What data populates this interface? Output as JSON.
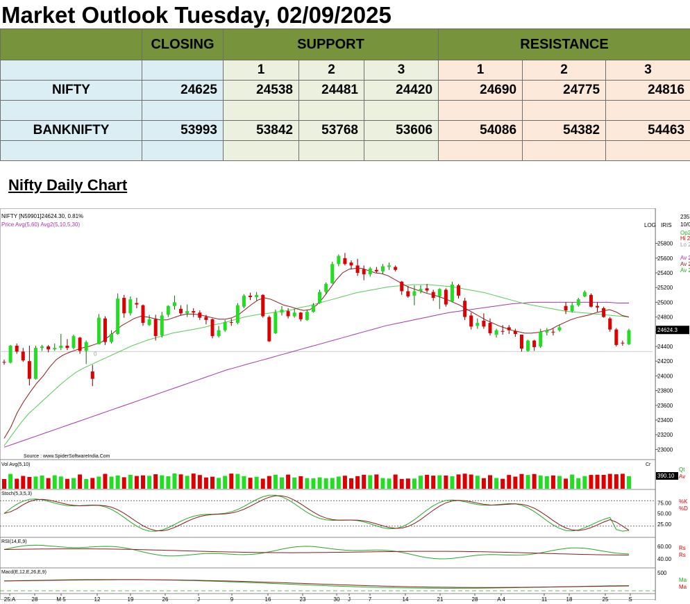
{
  "title": "Market Outlook Tuesday, 02/09/2025",
  "table": {
    "headers": {
      "closing": "CLOSING",
      "support": "SUPPORT",
      "resistance": "RESISTANCE"
    },
    "level_numbers": [
      "1",
      "2",
      "3"
    ],
    "rows": [
      {
        "name": "NIFTY",
        "closing": "24625",
        "support": [
          "24538",
          "24481",
          "24420"
        ],
        "resistance": [
          "24690",
          "24775",
          "24816"
        ]
      },
      {
        "name": "BANKNIFTY",
        "closing": "53993",
        "support": [
          "53842",
          "53768",
          "53606"
        ],
        "resistance": [
          "54086",
          "54382",
          "54463"
        ]
      }
    ]
  },
  "subtitle": "Nifty Daily Chart",
  "chart_data": {
    "type": "candlestick",
    "header_line1": "NIFTY [N59901]24624.30, 0.81%",
    "header_line2": "Price Avg(5,60) Avg2(5,10,5,30)",
    "source": "Source : www.SpiderSoftwareIndia.Com",
    "scale_labels": [
      "LOG",
      "IRIS"
    ],
    "right_labels": [
      "235",
      "10/0",
      "Op2",
      "Hi 2",
      "Lo 2",
      "Av 2",
      "Av 2",
      "Av 2"
    ],
    "last_price_label": "24624.3",
    "y_ticks": [
      23000,
      23200,
      23400,
      23600,
      23800,
      24000,
      24200,
      24400,
      24600,
      24800,
      25000,
      25200,
      25400,
      25600,
      25800
    ],
    "ylim": [
      22900,
      25900
    ],
    "support_line": 24330,
    "zero_marker": "0",
    "candles": [
      [
        24190,
        24220,
        24150,
        24180
      ],
      [
        24180,
        24420,
        24170,
        24410
      ],
      [
        24410,
        24440,
        24300,
        24330
      ],
      [
        24330,
        24380,
        24190,
        24210
      ],
      [
        24200,
        24410,
        23870,
        23960
      ],
      [
        23960,
        24410,
        23950,
        24380
      ],
      [
        24380,
        24420,
        24340,
        24400
      ],
      [
        24400,
        24420,
        24320,
        24360
      ],
      [
        24360,
        24440,
        24340,
        24380
      ],
      [
        24380,
        24570,
        24350,
        24410
      ],
      [
        24410,
        24500,
        24350,
        24380
      ],
      [
        24380,
        24560,
        24360,
        24540
      ],
      [
        24520,
        24530,
        24300,
        24340
      ],
      [
        24340,
        24480,
        24160,
        24460
      ],
      [
        24060,
        24150,
        23860,
        23960
      ],
      [
        24430,
        24840,
        24430,
        24790
      ],
      [
        24780,
        24810,
        24420,
        24460
      ],
      [
        24460,
        24620,
        24440,
        24570
      ],
      [
        24570,
        25120,
        24560,
        25050
      ],
      [
        25060,
        25100,
        24790,
        24850
      ],
      [
        24850,
        25080,
        24820,
        25040
      ],
      [
        24990,
        25060,
        24920,
        24970
      ],
      [
        24960,
        24970,
        24680,
        24720
      ],
      [
        24690,
        24830,
        24680,
        24770
      ],
      [
        24770,
        24830,
        24480,
        24540
      ],
      [
        24550,
        24870,
        24520,
        24820
      ],
      [
        24830,
        24960,
        24800,
        24950
      ],
      [
        24950,
        25090,
        24900,
        25000
      ],
      [
        24910,
        24960,
        24820,
        24850
      ],
      [
        24850,
        24970,
        24800,
        24880
      ],
      [
        24880,
        24920,
        24800,
        24860
      ],
      [
        24860,
        24890,
        24760,
        24790
      ],
      [
        24800,
        24830,
        24700,
        24760
      ],
      [
        24770,
        24780,
        24510,
        24540
      ],
      [
        24540,
        24680,
        24520,
        24620
      ],
      [
        24620,
        24760,
        24600,
        24730
      ],
      [
        24730,
        24780,
        24680,
        24720
      ],
      [
        24720,
        24990,
        24700,
        24960
      ],
      [
        24940,
        25110,
        24920,
        25090
      ],
      [
        25090,
        25130,
        25030,
        25070
      ],
      [
        25070,
        25140,
        25020,
        25100
      ],
      [
        25100,
        25110,
        24790,
        24810
      ],
      [
        24800,
        24820,
        24460,
        24470
      ],
      [
        24580,
        24900,
        24570,
        24860
      ],
      [
        24860,
        24950,
        24820,
        24900
      ],
      [
        24880,
        24920,
        24780,
        24810
      ],
      [
        24810,
        24910,
        24790,
        24860
      ],
      [
        24860,
        24870,
        24740,
        24770
      ],
      [
        24760,
        24890,
        24750,
        24870
      ],
      [
        24870,
        24990,
        24860,
        24960
      ],
      [
        24990,
        25170,
        24980,
        25140
      ],
      [
        25140,
        25270,
        25110,
        25250
      ],
      [
        25260,
        25550,
        25250,
        25520
      ],
      [
        25520,
        25650,
        25490,
        25630
      ],
      [
        25600,
        25670,
        25500,
        25520
      ],
      [
        25540,
        25570,
        25450,
        25500
      ],
      [
        25500,
        25590,
        25360,
        25400
      ],
      [
        25450,
        25500,
        25300,
        25380
      ],
      [
        25380,
        25480,
        25350,
        25460
      ],
      [
        25440,
        25480,
        25400,
        25420
      ],
      [
        25420,
        25520,
        25380,
        25490
      ],
      [
        25480,
        25540,
        25440,
        25500
      ],
      [
        25480,
        25500,
        25420,
        25440
      ],
      [
        25280,
        25290,
        25100,
        25150
      ],
      [
        25150,
        25220,
        25060,
        25080
      ],
      [
        25090,
        25230,
        24960,
        25150
      ],
      [
        25150,
        25230,
        25120,
        25180
      ],
      [
        25190,
        25250,
        25130,
        25160
      ],
      [
        25140,
        25170,
        25020,
        25060
      ],
      [
        25080,
        25190,
        24910,
        25180
      ],
      [
        25170,
        25190,
        24940,
        24970
      ],
      [
        25010,
        25280,
        25000,
        25240
      ],
      [
        25230,
        25250,
        25050,
        25090
      ],
      [
        25020,
        25060,
        24760,
        24800
      ],
      [
        24820,
        24860,
        24630,
        24670
      ],
      [
        24680,
        24780,
        24640,
        24720
      ],
      [
        24750,
        24850,
        24640,
        24670
      ],
      [
        24720,
        24780,
        24550,
        24580
      ],
      [
        24560,
        24640,
        24520,
        24620
      ],
      [
        24610,
        24690,
        24560,
        24600
      ],
      [
        24660,
        24690,
        24570,
        24620
      ],
      [
        24610,
        24640,
        24530,
        24570
      ],
      [
        24560,
        24560,
        24330,
        24370
      ],
      [
        24340,
        24490,
        24330,
        24480
      ],
      [
        24480,
        24490,
        24340,
        24390
      ],
      [
        24400,
        24640,
        24380,
        24600
      ],
      [
        24590,
        24650,
        24550,
        24620
      ],
      [
        24600,
        24640,
        24550,
        24590
      ],
      [
        24620,
        24700,
        24600,
        24660
      ],
      [
        24950,
        25000,
        24840,
        24890
      ],
      [
        24880,
        25000,
        24860,
        24960
      ],
      [
        24960,
        25060,
        24940,
        25040
      ],
      [
        25080,
        25160,
        25070,
        25140
      ],
      [
        25100,
        25120,
        24930,
        24940
      ],
      [
        24950,
        25000,
        24870,
        24930
      ],
      [
        24920,
        24940,
        24790,
        24800
      ],
      [
        24780,
        24800,
        24600,
        24630
      ],
      [
        24630,
        24650,
        24400,
        24420
      ],
      [
        24450,
        24480,
        24410,
        24440
      ],
      [
        24430,
        24640,
        24420,
        24620
      ]
    ],
    "ma_short": [
      23150,
      23300,
      23500,
      23650,
      23780,
      23900,
      24000,
      24120,
      24220,
      24280,
      24320,
      24350,
      24380,
      24400,
      24430,
      24460,
      24530,
      24600,
      24680,
      24730,
      24780,
      24810,
      24800,
      24780,
      24760,
      24760,
      24790,
      24820,
      24840,
      24840,
      24830,
      24810,
      24790,
      24770,
      24770,
      24790,
      24830,
      24900,
      24970,
      25030,
      25060,
      25040,
      25000,
      24960,
      24940,
      24910,
      24890,
      24900,
      24960,
      25060,
      25180,
      25300,
      25400,
      25450,
      25460,
      25460,
      25430,
      25400,
      25390,
      25360,
      25310,
      25260,
      25210,
      25180,
      25150,
      25120,
      25100,
      25070,
      25040,
      25000,
      24960,
      24910,
      24860,
      24810,
      24760,
      24720,
      24680,
      24650,
      24620,
      24600,
      24580,
      24580,
      24590,
      24610,
      24630,
      24680,
      24720,
      24760,
      24790,
      24810,
      24830,
      24860,
      24880,
      24900,
      24870,
      24820,
      24800
    ],
    "ma_mid": [
      23050,
      23200,
      23350,
      23480,
      23580,
      23680,
      23780,
      23880,
      23970,
      24050,
      24110,
      24160,
      24210,
      24260,
      24310,
      24360,
      24410,
      24450,
      24490,
      24520,
      24550,
      24580,
      24600,
      24620,
      24640,
      24660,
      24690,
      24710,
      24740,
      24770,
      24800,
      24820,
      24840,
      24850,
      24870,
      24880,
      24900,
      24930,
      24950,
      24980,
      25010,
      25040,
      25070,
      25100,
      25130,
      25150,
      25170,
      25190,
      25210,
      25220,
      25230,
      25240,
      25240,
      25240,
      25230,
      25220,
      25210,
      25190,
      25170,
      25150,
      25130,
      25100,
      25070,
      25040,
      25010,
      24980,
      24960,
      24940,
      24920,
      24900,
      24880,
      24870,
      24860,
      24850,
      24840,
      24830,
      24820,
      24810,
      24800
    ],
    "ma_long": [
      23030,
      23080,
      23130,
      23180,
      23230,
      23280,
      23330,
      23380,
      23430,
      23480,
      23530,
      23580,
      23630,
      23680,
      23730,
      23780,
      23830,
      23880,
      23930,
      23980,
      24030,
      24080,
      24120,
      24160,
      24200,
      24240,
      24280,
      24320,
      24360,
      24400,
      24440,
      24480,
      24520,
      24560,
      24600,
      24640,
      24680,
      24710,
      24740,
      24770,
      24800,
      24830,
      24860,
      24880,
      24900,
      24920,
      24940,
      24960,
      24980,
      24990,
      25000,
      25000,
      25000,
      25000,
      25000,
      25000,
      25000,
      25000,
      24990,
      24990
    ],
    "volume_panel": {
      "label": "Vol Avg(5,10)",
      "right": [
        "Qt",
        "Av"
      ],
      "value_label": "390.10",
      "top_label": "Cr"
    },
    "stoch_panel": {
      "label": "Stoch(5,3,5,3)",
      "ticks": [
        "75.00",
        "50.00",
        "25.00"
      ],
      "right": [
        "%K",
        "%D"
      ]
    },
    "rsi_panel": {
      "label": "RSI(14,E,9)",
      "ticks": [
        "60.00",
        "40.00"
      ],
      "right": [
        "Rs",
        "Rs"
      ]
    },
    "macd_panel": {
      "label": "Macd(E,12,E,26,E,9)",
      "ticks": [
        "500"
      ],
      "right": [
        "Ma",
        "Ma"
      ]
    },
    "x_labels": [
      "25:A",
      "28",
      "M 5",
      "12",
      "19",
      "26",
      "J",
      "9",
      "16",
      "23",
      "30",
      "J",
      "7",
      "14",
      "21",
      "28",
      "A 4",
      "11",
      "18",
      "25",
      "S"
    ],
    "colors": {
      "up": "#22dd22",
      "down": "#dd0000",
      "ma_short": "#8b1a1a",
      "ma_mid": "#55cc55",
      "ma_long": "#aa33aa"
    }
  }
}
